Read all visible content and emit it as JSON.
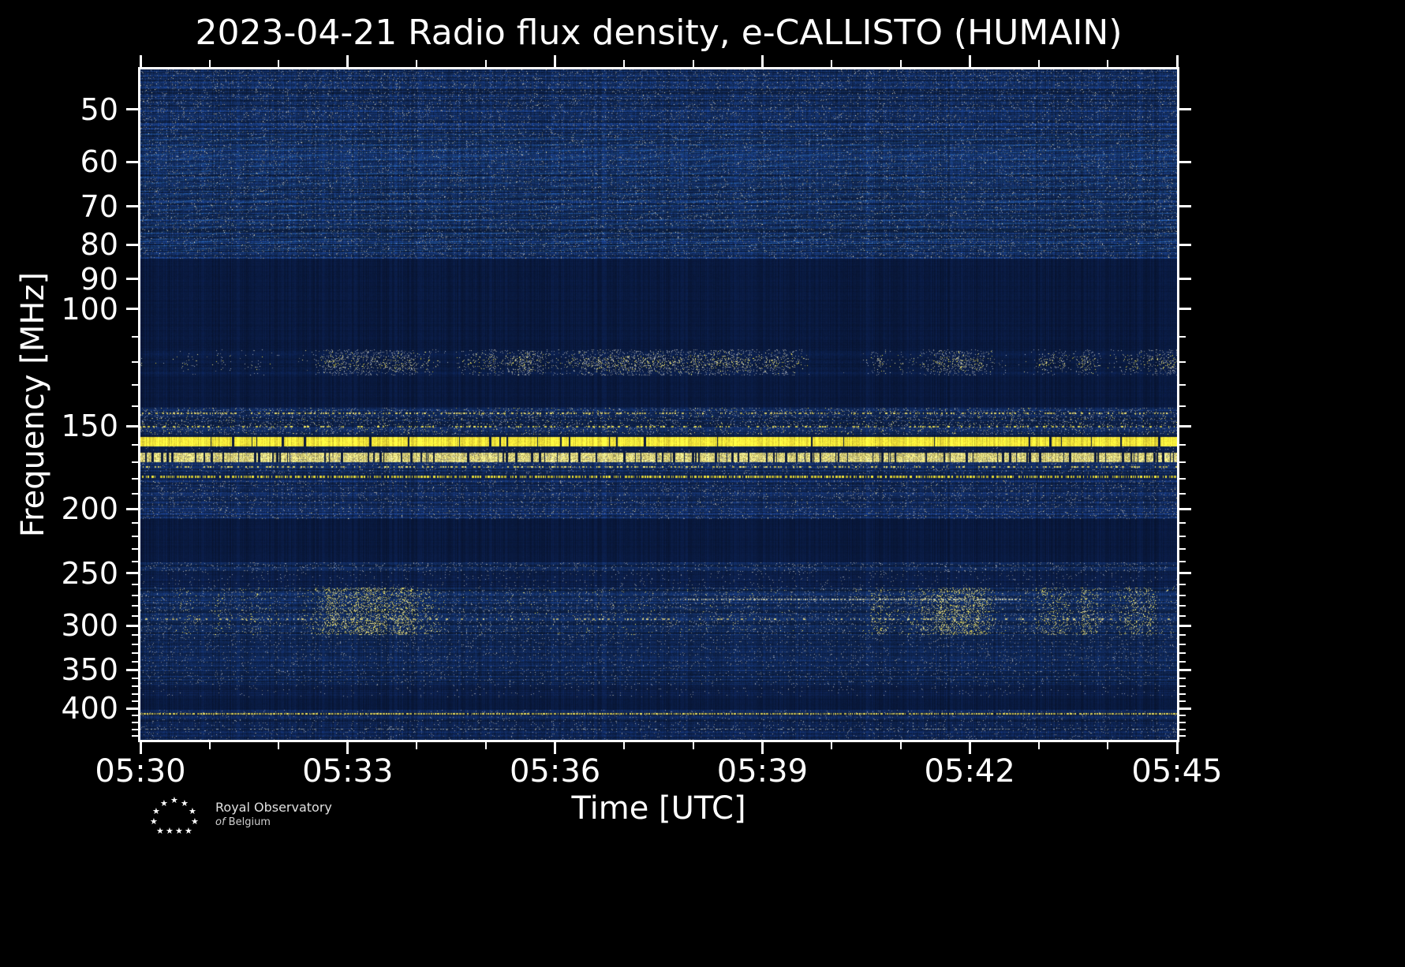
{
  "title": "2023-04-21 Radio flux density, e-CALLISTO (HUMAIN)",
  "xlabel": "Time [UTC]",
  "ylabel": "Frequency [MHz]",
  "logo": {
    "line1": "Royal Observatory",
    "line2_italic": "of",
    "line2_rest": "Belgium"
  },
  "colors": {
    "background": "#000000",
    "frame": "#ffffff",
    "text": "#ffffff",
    "plot_background": "#0a1f4d",
    "bright_rfi": "#f8e93a"
  },
  "chart_data": {
    "type": "heatmap",
    "title": "2023-04-21 Radio flux density, e-CALLISTO (HUMAIN)",
    "xlabel": "Time [UTC]",
    "ylabel": "Frequency [MHz]",
    "observation": {
      "date": "2023-04-21",
      "instrument": "e-CALLISTO",
      "station": "HUMAIN"
    },
    "x_range_utc": [
      "05:30",
      "05:45"
    ],
    "x_ticks": [
      "05:30",
      "05:33",
      "05:36",
      "05:39",
      "05:42",
      "05:45"
    ],
    "x_tick_minutes": [
      0,
      3,
      6,
      9,
      12,
      15
    ],
    "x_minor_every_min": 1,
    "y_scale": "log",
    "y_axis_inverted": true,
    "y_range_mhz": [
      43.5,
      446
    ],
    "y_ticks": [
      50,
      60,
      70,
      80,
      90,
      100,
      150,
      200,
      250,
      300,
      350,
      400
    ],
    "legend": "none",
    "grid": false,
    "bands": [
      {
        "f1": 43.5,
        "f2": 84,
        "base": [
          18,
          44,
          94
        ],
        "row_var": 0.4,
        "pix_var": 0.22,
        "wave": true,
        "speckles": [
          {
            "color": [
              135,
              145,
              162
            ],
            "p": 0.05
          },
          {
            "color": [
              225,
              220,
              190
            ],
            "p": 0.006
          }
        ],
        "desc": "broadband noise with drifting ripple pattern"
      },
      {
        "f1": 84,
        "f2": 115,
        "base": [
          9,
          25,
          62
        ],
        "row_var": 0.07,
        "pix_var": 0.06,
        "desc": "quiet blanked band"
      },
      {
        "f1": 115,
        "f2": 126,
        "base": [
          10,
          28,
          68
        ],
        "row_var": 0.18,
        "pix_var": 0.1,
        "speckles": [
          {
            "color": [
              150,
              158,
              172
            ],
            "p": 0.05,
            "cluster": true
          },
          {
            "color": [
              240,
              232,
              150
            ],
            "p": 0.03,
            "cluster": true,
            "center": true
          },
          {
            "color": [
              255,
              238,
              70
            ],
            "p": 0.018,
            "cluster": true,
            "center": true
          }
        ],
        "desc": "aeronautical band intermittent carriers ~120 MHz"
      },
      {
        "f1": 126,
        "f2": 141,
        "base": [
          9,
          25,
          62
        ],
        "row_var": 0.07,
        "pix_var": 0.06
      },
      {
        "f1": 141,
        "f2": 154.5,
        "base": [
          15,
          38,
          84
        ],
        "row_var": 0.35,
        "pix_var": 0.18,
        "speckles": [
          {
            "color": [
              150,
              158,
              172
            ],
            "p": 0.07
          },
          {
            "color": [
              244,
              234,
              130
            ],
            "p": 0.012
          },
          {
            "color": [
              255,
              240,
              80
            ],
            "p": 0.005
          }
        ]
      },
      {
        "f1": 154.5,
        "f2": 155.8,
        "base": [
          10,
          27,
          64
        ],
        "row_var": 0.1,
        "pix_var": 0.08
      },
      {
        "f1": 155.8,
        "f2": 161,
        "base": [
          250,
          233,
          58
        ],
        "row_var": 0.04,
        "pix_var": 0.1,
        "gap_p": 0.02,
        "desc": "strong continuous RFI carrier ~157 MHz"
      },
      {
        "f1": 161,
        "f2": 164.5,
        "base": [
          12,
          31,
          74
        ],
        "row_var": 0.2,
        "pix_var": 0.1,
        "speckles": [
          {
            "color": [
              150,
              158,
              172
            ],
            "p": 0.02
          }
        ]
      },
      {
        "f1": 164.5,
        "f2": 170,
        "base": [
          222,
          212,
          122
        ],
        "row_var": 0.08,
        "pix_var": 0.3,
        "gap_p": 0.1,
        "speckles": [
          {
            "color": [
              160,
              165,
              175
            ],
            "p": 0.06
          },
          {
            "color": [
              255,
              244,
              120
            ],
            "p": 0.05
          }
        ],
        "desc": "bright broken RFI band ~167 MHz"
      },
      {
        "f1": 170,
        "f2": 177,
        "base": [
          17,
          41,
          90
        ],
        "row_var": 0.3,
        "pix_var": 0.15,
        "speckles": [
          {
            "color": [
              150,
              158,
              172
            ],
            "p": 0.04
          }
        ]
      },
      {
        "f1": 177,
        "f2": 181,
        "base": [
          12,
          31,
          74
        ],
        "row_var": 0.15,
        "pix_var": 0.1
      },
      {
        "f1": 181,
        "f2": 207,
        "base": [
          17,
          41,
          90
        ],
        "row_var": 0.35,
        "pix_var": 0.18,
        "speckles": [
          {
            "color": [
              145,
              153,
              168
            ],
            "p": 0.05
          },
          {
            "color": [
              235,
              228,
              170
            ],
            "p": 0.004
          }
        ]
      },
      {
        "f1": 207,
        "f2": 241,
        "base": [
          9,
          25,
          62
        ],
        "row_var": 0.06,
        "pix_var": 0.05
      },
      {
        "f1": 241,
        "f2": 249,
        "base": [
          14,
          36,
          80
        ],
        "row_var": 0.3,
        "pix_var": 0.15,
        "speckles": [
          {
            "color": [
              150,
              158,
              172
            ],
            "p": 0.06
          }
        ]
      },
      {
        "f1": 249,
        "f2": 263,
        "base": [
          11,
          29,
          70
        ],
        "row_var": 0.18,
        "pix_var": 0.1,
        "speckles": [
          {
            "color": [
              140,
              148,
              164
            ],
            "p": 0.02
          }
        ]
      },
      {
        "f1": 263,
        "f2": 310,
        "base": [
          16,
          40,
          86
        ],
        "row_var": 0.32,
        "pix_var": 0.18,
        "x_windows": [
          [
            0.02,
            0.3
          ],
          [
            0.68,
            0.98
          ]
        ],
        "speckles": [
          {
            "color": [
              148,
              156,
              170
            ],
            "p": 0.05
          },
          {
            "color": [
              240,
              230,
              140
            ],
            "p": 0.02,
            "cluster": true,
            "win": true
          },
          {
            "color": [
              255,
              240,
              90
            ],
            "p": 0.01,
            "cluster": true,
            "win": true
          }
        ],
        "desc": "intermittent RFI patches 280-300 MHz"
      },
      {
        "f1": 310,
        "f2": 368,
        "base": [
          15,
          38,
          84
        ],
        "row_var": 0.3,
        "pix_var": 0.16,
        "speckles": [
          {
            "color": [
              145,
              153,
              168
            ],
            "p": 0.035
          }
        ]
      },
      {
        "f1": 368,
        "f2": 385,
        "base": [
          12,
          31,
          74
        ],
        "row_var": 0.2,
        "pix_var": 0.1,
        "speckles": [
          {
            "color": [
              140,
              148,
              164
            ],
            "p": 0.015
          }
        ]
      },
      {
        "f1": 385,
        "f2": 402,
        "base": [
          9,
          26,
          64
        ],
        "row_var": 0.08,
        "pix_var": 0.06
      },
      {
        "f1": 402,
        "f2": 446,
        "base": [
          14,
          36,
          82
        ],
        "row_var": 0.3,
        "pix_var": 0.16,
        "speckles": [
          {
            "color": [
              145,
              153,
              168
            ],
            "p": 0.03
          }
        ]
      }
    ],
    "lines": [
      {
        "f": 143.5,
        "px": 2,
        "color": [
          242,
          230,
          120
        ],
        "p": 0.25
      },
      {
        "f": 150.5,
        "px": 2,
        "color": [
          252,
          240,
          90
        ],
        "p": 0.15
      },
      {
        "f": 173,
        "px": 2,
        "color": [
          246,
          234,
          110
        ],
        "p": 0.22
      },
      {
        "f": 178.8,
        "px": 3,
        "color": [
          253,
          240,
          58
        ],
        "p": 0.55
      },
      {
        "f": 274,
        "px": 2,
        "color": [
          206,
          209,
          180
        ],
        "p": 0.5,
        "x1": 0.52,
        "x2": 0.85
      },
      {
        "f": 293,
        "px": 2,
        "color": [
          232,
          222,
          142
        ],
        "p": 0.13
      },
      {
        "f": 407,
        "px": 2,
        "color": [
          245,
          231,
          96
        ],
        "p": 0.8
      },
      {
        "f": 430,
        "px": 1,
        "color": [
          170,
          176,
          168
        ],
        "p": 0.18
      }
    ]
  }
}
